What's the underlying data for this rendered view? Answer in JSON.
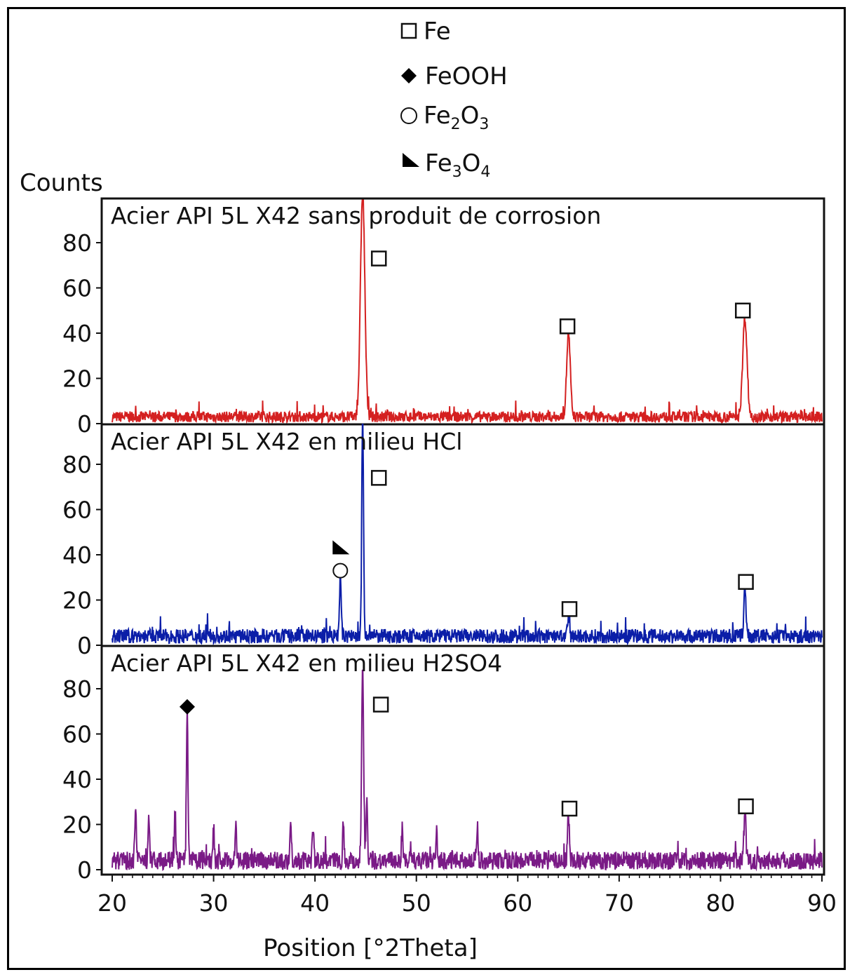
{
  "chart_data": {
    "type": "line",
    "ylabel": "Counts",
    "xlabel": "Position [°2Theta]",
    "xlim": [
      20,
      90
    ],
    "xticks": [
      20,
      30,
      40,
      50,
      60,
      70,
      80,
      90
    ],
    "ylim": [
      0,
      98
    ],
    "yticks": [
      0,
      20,
      40,
      60,
      80
    ],
    "legend": {
      "placement": "top-center",
      "entries": [
        {
          "marker": "square-open",
          "base": "Fe",
          "label": "Fe"
        },
        {
          "marker": "diamond-filled",
          "base": "FeOOH",
          "label": "FeOOH"
        },
        {
          "marker": "circle-open",
          "base": "Fe",
          "sub1": "2",
          "mid": "O",
          "sub2": "3",
          "label": "Fe2O3"
        },
        {
          "marker": "triangle-filled",
          "base": "Fe",
          "sub1": "3",
          "mid": "O",
          "sub2": "4",
          "label": "Fe3O4"
        }
      ]
    },
    "panels": [
      {
        "title": "Acier API 5L X42 sans produit de corrosion",
        "color": "#d42020",
        "baseline": 3,
        "noise": 3,
        "peaks": [
          {
            "x": 44.7,
            "y": 100,
            "w": 0.3
          },
          {
            "x": 65.0,
            "y": 37,
            "w": 0.25
          },
          {
            "x": 82.4,
            "y": 44,
            "w": 0.3
          }
        ],
        "markers": [
          {
            "type": "square-open",
            "x": 46.3,
            "y": 73
          },
          {
            "type": "square-open",
            "x": 64.9,
            "y": 43
          },
          {
            "type": "square-open",
            "x": 82.2,
            "y": 50
          }
        ]
      },
      {
        "title": "Acier API 5L X42 en milieu HCl",
        "color": "#0b1ea8",
        "baseline": 4,
        "noise": 4,
        "peaks": [
          {
            "x": 42.5,
            "y": 26,
            "w": 0.12
          },
          {
            "x": 44.7,
            "y": 100,
            "w": 0.12
          },
          {
            "x": 65.0,
            "y": 8,
            "w": 0.12
          },
          {
            "x": 82.4,
            "y": 22,
            "w": 0.15
          }
        ],
        "markers": [
          {
            "type": "triangle-filled",
            "x": 42.5,
            "y": 43
          },
          {
            "type": "circle-open",
            "x": 42.5,
            "y": 33
          },
          {
            "type": "square-open",
            "x": 46.3,
            "y": 74
          },
          {
            "type": "square-open",
            "x": 65.1,
            "y": 16
          },
          {
            "type": "square-open",
            "x": 82.5,
            "y": 28
          }
        ]
      },
      {
        "title": "Acier API 5L X42 en milieu H2SO4",
        "color": "#7a1a86",
        "baseline": 4,
        "noise": 5,
        "peaks": [
          {
            "x": 22.3,
            "y": 24,
            "w": 0.1
          },
          {
            "x": 23.6,
            "y": 22,
            "w": 0.1
          },
          {
            "x": 26.2,
            "y": 21,
            "w": 0.1
          },
          {
            "x": 27.4,
            "y": 66,
            "w": 0.1
          },
          {
            "x": 30.0,
            "y": 16,
            "w": 0.1
          },
          {
            "x": 32.2,
            "y": 15,
            "w": 0.1
          },
          {
            "x": 37.6,
            "y": 17,
            "w": 0.1
          },
          {
            "x": 39.8,
            "y": 15,
            "w": 0.1
          },
          {
            "x": 42.8,
            "y": 16,
            "w": 0.1
          },
          {
            "x": 44.7,
            "y": 86,
            "w": 0.14
          },
          {
            "x": 45.1,
            "y": 28,
            "w": 0.1
          },
          {
            "x": 48.6,
            "y": 14,
            "w": 0.1
          },
          {
            "x": 52.0,
            "y": 12,
            "w": 0.1
          },
          {
            "x": 56.0,
            "y": 12,
            "w": 0.1
          },
          {
            "x": 65.0,
            "y": 21,
            "w": 0.12
          },
          {
            "x": 82.4,
            "y": 22,
            "w": 0.14
          }
        ],
        "markers": [
          {
            "type": "diamond-filled",
            "x": 27.4,
            "y": 72
          },
          {
            "type": "square-open",
            "x": 46.5,
            "y": 73
          },
          {
            "type": "square-open",
            "x": 65.1,
            "y": 27
          },
          {
            "type": "square-open",
            "x": 82.5,
            "y": 28
          }
        ]
      }
    ]
  }
}
